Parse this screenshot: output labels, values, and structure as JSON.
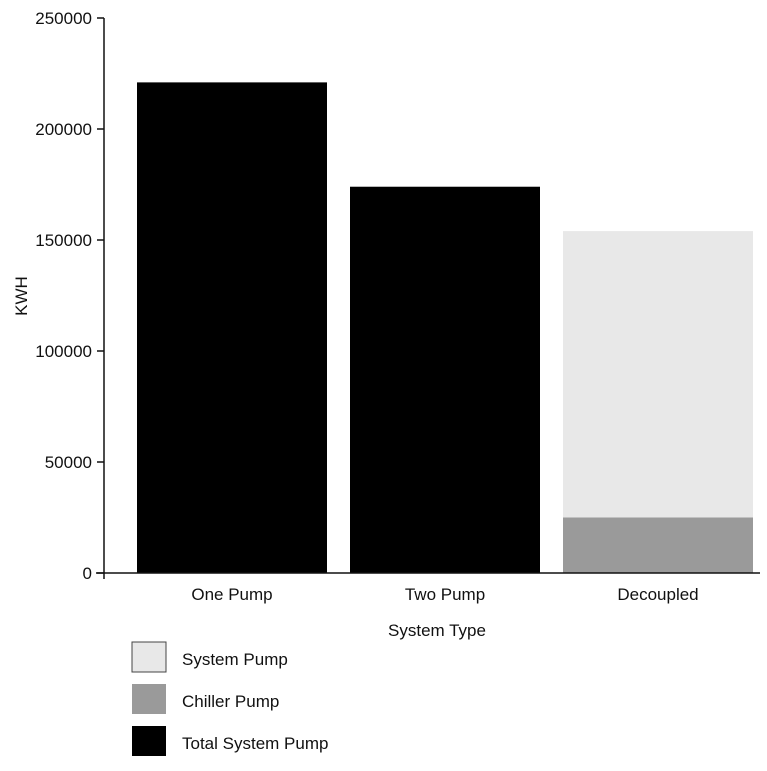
{
  "chart_data": {
    "type": "bar",
    "stacked": true,
    "categories": [
      "One Pump",
      "Two Pump",
      "Decoupled"
    ],
    "series": [
      {
        "name": "Total System Pump",
        "values": [
          221000,
          174000,
          0
        ],
        "color": "#000000"
      },
      {
        "name": "Chiller Pump",
        "values": [
          0,
          0,
          25000
        ],
        "color": "#9a9a9a"
      },
      {
        "name": "System Pump",
        "values": [
          0,
          0,
          129000
        ],
        "color": "#e8e8e8"
      }
    ],
    "legend_order": [
      "System Pump",
      "Chiller Pump",
      "Total System Pump"
    ],
    "xlabel": "System Type",
    "ylabel": "KWH",
    "ylim": [
      0,
      250000
    ],
    "yticks": [
      "0",
      "50000",
      "100000",
      "150000",
      "200000",
      "250000"
    ],
    "grid": false,
    "legend_position": "bottom-left"
  }
}
